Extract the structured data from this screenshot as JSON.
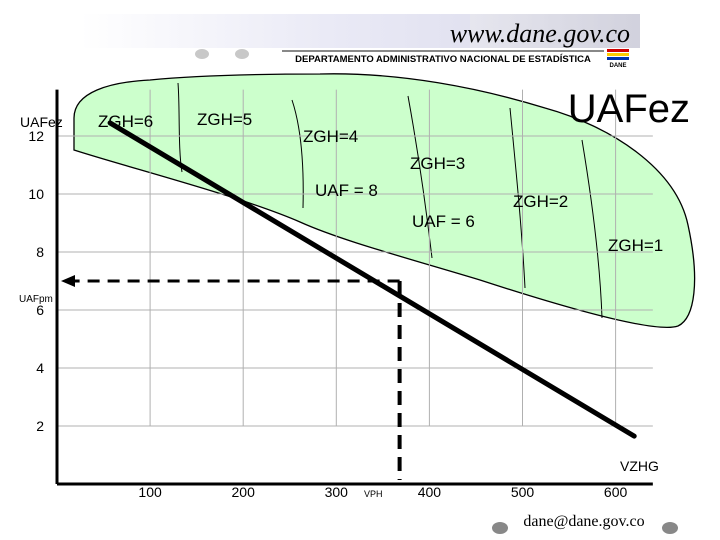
{
  "header": {
    "website": "www.dane.gov.co",
    "department": "DEPARTAMENTO ADMINISTRATIVO NACIONAL DE ESTADÍSTICA",
    "logo_text": "DANE"
  },
  "footer": {
    "email": "dane@dane.gov.co"
  },
  "diagram": {
    "title": "UAFez",
    "y_axis_label": "UAFez",
    "x_axis_label": "VZHG",
    "zone_labels": [
      "ZGH=6",
      "ZGH=5",
      "ZGH=4",
      "ZGH=3",
      "ZGH=2",
      "ZGH=1"
    ],
    "uaf_labels": [
      "UAF = 8",
      "UAF = 6"
    ],
    "uafpm_label": "UAFpm",
    "vph_label": "VPH"
  },
  "chart_data": {
    "type": "line",
    "title": "UAFez",
    "xlabel": "VZHG",
    "ylabel": "UAFez",
    "x_ticks": [
      100,
      200,
      300,
      400,
      500,
      600
    ],
    "y_ticks": [
      2,
      4,
      6,
      8,
      10,
      12
    ],
    "xlim": [
      0,
      640
    ],
    "ylim": [
      0,
      13.6
    ],
    "series": [
      {
        "x": [
          57,
          620
        ],
        "y": [
          12.45,
          1.65
        ]
      }
    ],
    "reference": {
      "x": 368,
      "y": 7.0,
      "x_label": "VPH",
      "y_label": "UAFpm"
    },
    "grid": true
  },
  "colors": {
    "region_fill": "#ccffcc",
    "line": "#000000",
    "grid": "#b0b0b0"
  }
}
